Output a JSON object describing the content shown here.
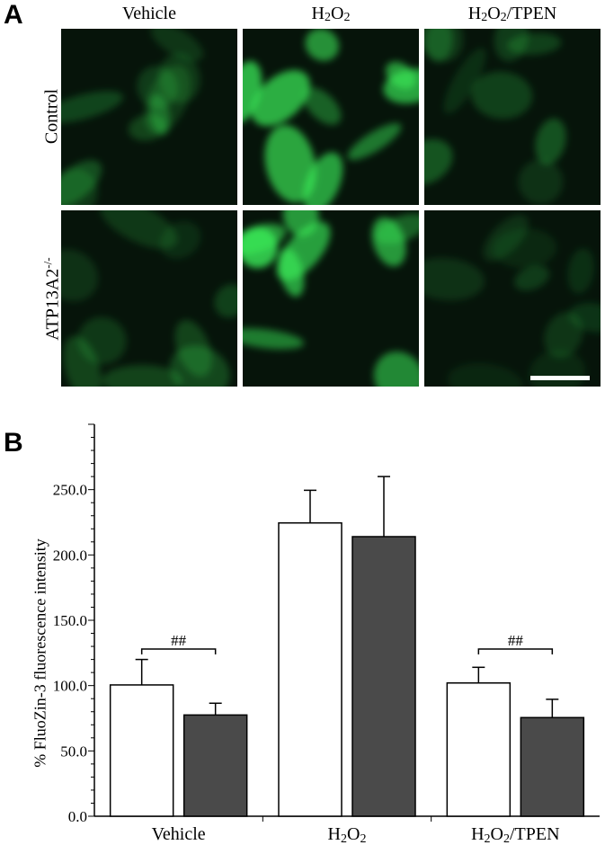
{
  "panel_a": {
    "label": "A",
    "columns": [
      "Vehicle",
      "H2O2",
      "H2O2/TPEN"
    ],
    "rows": [
      "Control",
      "ATP13A2-/-"
    ],
    "fluorescence_color": "#3cf05a",
    "brightness": [
      [
        0.35,
        0.85,
        0.35
      ],
      [
        0.3,
        0.95,
        0.22
      ]
    ]
  },
  "panel_b": {
    "label": "B"
  },
  "chart_data": {
    "type": "bar",
    "categories": [
      "Vehicle",
      "H2O2",
      "H2O2/TPEN"
    ],
    "series": [
      {
        "fill": "#ffffff",
        "values": [
          100.5,
          224.5,
          102.0
        ],
        "errors": [
          19.5,
          25.0,
          12.0
        ]
      },
      {
        "fill": "#4a4a4a",
        "values": [
          77.5,
          214.0,
          75.5
        ],
        "errors": [
          9.0,
          46.0,
          14.0
        ]
      }
    ],
    "ylabel": "% FluoZin-3 fluorescence intensity",
    "ylim": [
      0,
      300
    ],
    "yticks": [
      "0.0",
      "50.0",
      "100.0",
      "150.0",
      "200.0",
      "250.0"
    ],
    "ytick_values": [
      0,
      50,
      100,
      150,
      200,
      250
    ],
    "annotations": [
      {
        "text": "##",
        "category": "Vehicle"
      },
      {
        "text": "##",
        "category": "H2O2/TPEN"
      }
    ]
  }
}
